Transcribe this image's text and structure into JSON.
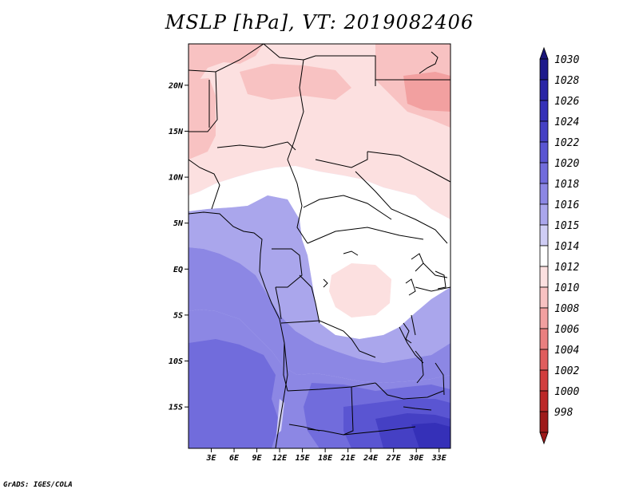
{
  "title": "MSLP [hPa], VT: 2019082406",
  "footer": "GrADS: IGES/COLA",
  "map": {
    "lon_range": [
      0,
      34.5
    ],
    "lat_range": [
      -19.5,
      24.5
    ],
    "lat_ticks": [
      {
        "lat": 20,
        "label": "20N"
      },
      {
        "lat": 15,
        "label": "15N"
      },
      {
        "lat": 10,
        "label": "10N"
      },
      {
        "lat": 5,
        "label": "5N"
      },
      {
        "lat": 0,
        "label": "EQ"
      },
      {
        "lat": -5,
        "label": "5S"
      },
      {
        "lat": -10,
        "label": "10S"
      },
      {
        "lat": -15,
        "label": "15S"
      }
    ],
    "lon_ticks": [
      {
        "lon": 3,
        "label": "3E"
      },
      {
        "lon": 6,
        "label": "6E"
      },
      {
        "lon": 9,
        "label": "9E"
      },
      {
        "lon": 12,
        "label": "12E"
      },
      {
        "lon": 15,
        "label": "15E"
      },
      {
        "lon": 18,
        "label": "18E"
      },
      {
        "lon": 21,
        "label": "21E"
      },
      {
        "lon": 24,
        "label": "24E"
      },
      {
        "lon": 27,
        "label": "27E"
      },
      {
        "lon": 30,
        "label": "30E"
      },
      {
        "lon": 33,
        "label": "33E"
      }
    ]
  },
  "colorbar": {
    "levels": [
      {
        "label": "1030",
        "color": "#1e1a8c"
      },
      {
        "label": "1028",
        "color": "#2a25a6"
      },
      {
        "label": "1026",
        "color": "#3530b8"
      },
      {
        "label": "1024",
        "color": "#4540c4"
      },
      {
        "label": "1022",
        "color": "#5a55d2"
      },
      {
        "label": "1020",
        "color": "#716cdc"
      },
      {
        "label": "1018",
        "color": "#8c87e4"
      },
      {
        "label": "1016",
        "color": "#aaa6ec"
      },
      {
        "label": "1015",
        "color": "#cfcdf5"
      },
      {
        "label": "1014",
        "color": "#ffffff"
      },
      {
        "label": "1012",
        "color": "#fce0e0"
      },
      {
        "label": "1010",
        "color": "#f8c2c2"
      },
      {
        "label": "1008",
        "color": "#f2a0a0"
      },
      {
        "label": "1006",
        "color": "#ea7f7f"
      },
      {
        "label": "1004",
        "color": "#e05d5d"
      },
      {
        "label": "1002",
        "color": "#d23e3e"
      },
      {
        "label": "1000",
        "color": "#bc2828"
      },
      {
        "label": "998",
        "color": "#9e1a1a"
      }
    ],
    "top_arrow_color": "#1a167a",
    "bottom_arrow_color": "#9e1a1a"
  }
}
